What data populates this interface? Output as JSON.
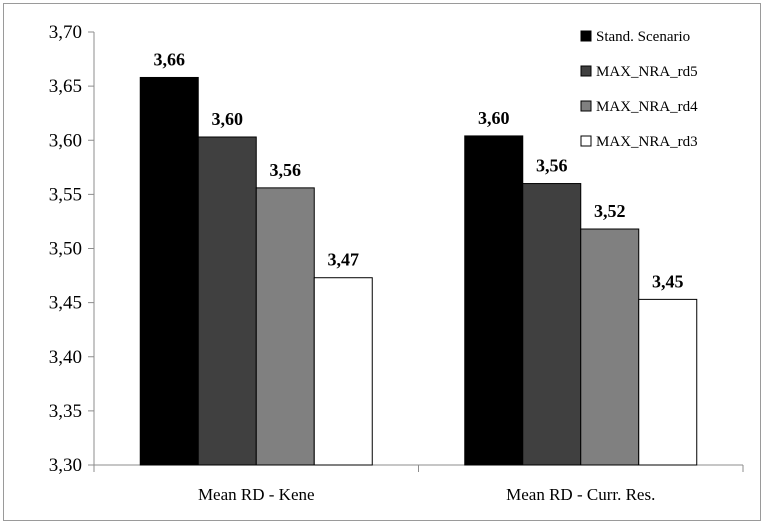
{
  "chart_data": {
    "type": "bar",
    "title": "",
    "xlabel": "",
    "ylabel": "",
    "ylim": [
      3.3,
      3.7
    ],
    "yticks": [
      "3,30",
      "3,35",
      "3,40",
      "3,45",
      "3,50",
      "3,55",
      "3,60",
      "3,65",
      "3,70"
    ],
    "grid": false,
    "legend_position": "top-right",
    "categories": [
      "Mean RD - Kene",
      "Mean RD - Curr. Res."
    ],
    "series": [
      {
        "name": "Stand. Scenario",
        "color": "#000000",
        "values": [
          3.658,
          3.604
        ],
        "labels": [
          "3,66",
          "3,60"
        ]
      },
      {
        "name": "MAX_NRA_rd5",
        "color": "#404040",
        "values": [
          3.603,
          3.56
        ],
        "labels": [
          "3,60",
          "3,56"
        ]
      },
      {
        "name": "MAX_NRA_rd4",
        "color": "#808080",
        "values": [
          3.556,
          3.518
        ],
        "labels": [
          "3,56",
          "3,52"
        ]
      },
      {
        "name": "MAX_NRA_rd3",
        "color": "#ffffff",
        "values": [
          3.473,
          3.453
        ],
        "labels": [
          "3,47",
          "3,45"
        ]
      }
    ]
  }
}
